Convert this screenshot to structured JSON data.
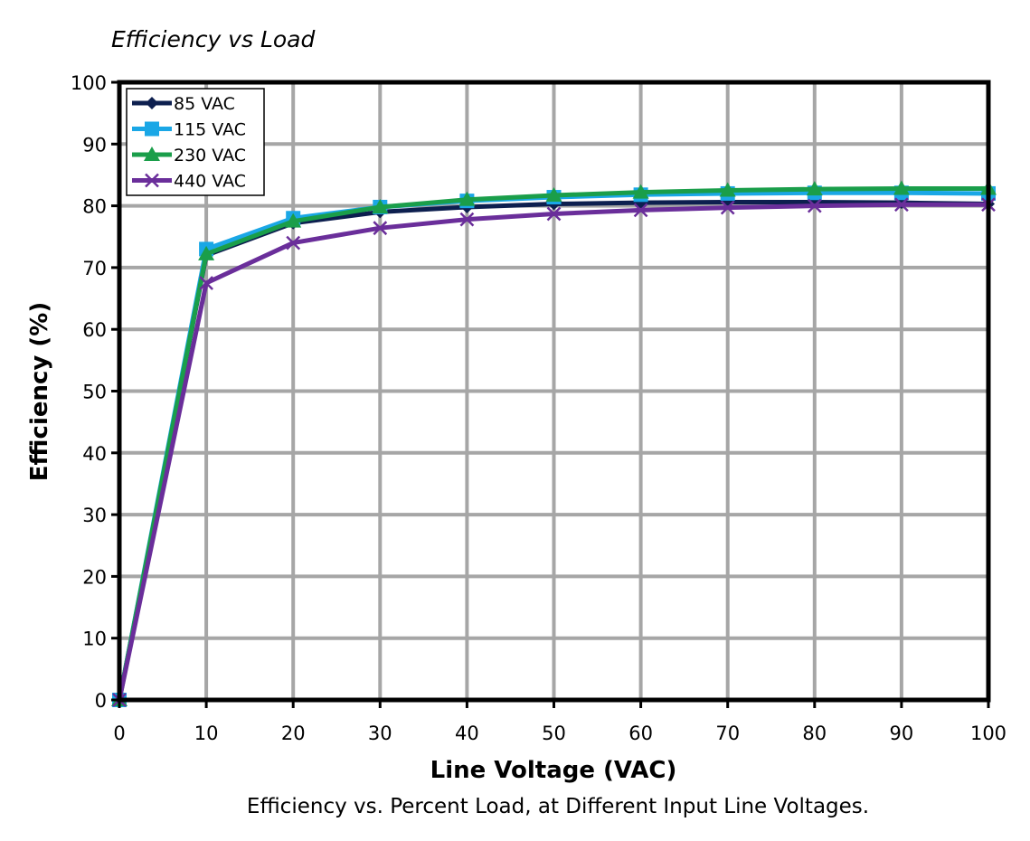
{
  "chart_data": {
    "type": "line",
    "title": "Efficiency vs Load",
    "caption": "Efficiency vs. Percent Load, at Different Input Line Voltages.",
    "xlabel": "Line Voltage (VAC)",
    "ylabel": "Efficiency (%)",
    "xlim": [
      0,
      100
    ],
    "ylim": [
      0,
      100
    ],
    "xticks": [
      "0",
      "10",
      "20",
      "30",
      "40",
      "50",
      "60",
      "70",
      "80",
      "90",
      "100"
    ],
    "yticks": [
      "0",
      "10",
      "20",
      "30",
      "40",
      "50",
      "60",
      "70",
      "80",
      "90",
      "100"
    ],
    "grid": true,
    "legend_position": "top-left",
    "x": [
      0,
      10,
      20,
      30,
      40,
      50,
      60,
      70,
      80,
      90,
      100
    ],
    "series": [
      {
        "name": "85 VAC",
        "color": "#0d1f4f",
        "marker": "diamond",
        "values": [
          0,
          72.0,
          77.2,
          79.0,
          79.8,
          80.3,
          80.5,
          80.6,
          80.6,
          80.5,
          80.3
        ]
      },
      {
        "name": "115 VAC",
        "color": "#1aa7e6",
        "marker": "square",
        "values": [
          0,
          73.0,
          78.0,
          79.8,
          80.8,
          81.4,
          81.8,
          82.0,
          82.1,
          82.1,
          82.0
        ]
      },
      {
        "name": "230 VAC",
        "color": "#1a9e4a",
        "marker": "triangle",
        "values": [
          0,
          72.2,
          77.5,
          79.8,
          81.0,
          81.7,
          82.2,
          82.5,
          82.7,
          82.8,
          82.8
        ]
      },
      {
        "name": "440 VAC",
        "color": "#6a2e9a",
        "marker": "x",
        "values": [
          0,
          67.5,
          74.0,
          76.4,
          77.8,
          78.7,
          79.3,
          79.7,
          80.0,
          80.2,
          80.2
        ]
      }
    ]
  }
}
